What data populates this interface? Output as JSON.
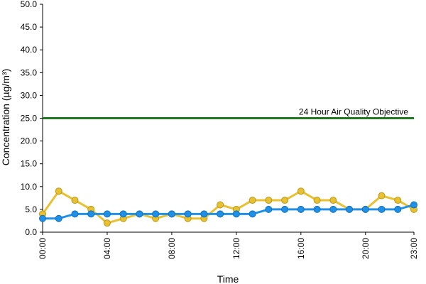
{
  "chart_data": {
    "type": "line",
    "title": "",
    "xlabel": "Time",
    "ylabel": "Concentration (µg/m³)",
    "ylim": [
      0,
      50
    ],
    "y_ticks": [
      "0.0",
      "5.0",
      "10.0",
      "15.0",
      "20.0",
      "25.0",
      "30.0",
      "35.0",
      "40.0",
      "45.0",
      "50.0"
    ],
    "x": [
      "00:00",
      "01:00",
      "02:00",
      "03:00",
      "04:00",
      "05:00",
      "06:00",
      "07:00",
      "08:00",
      "09:00",
      "10:00",
      "11:00",
      "12:00",
      "13:00",
      "14:00",
      "15:00",
      "16:00",
      "17:00",
      "18:00",
      "19:00",
      "20:00",
      "21:00",
      "22:00",
      "23:00"
    ],
    "x_tick_labels": [
      "00:00",
      "04:00",
      "08:00",
      "12:00",
      "16:00",
      "20:00",
      "23:00"
    ],
    "grid": false,
    "legend": "none",
    "objective": {
      "label": "24 Hour Air Quality Objective",
      "value": 25,
      "color": "#1f7a1f"
    },
    "series": [
      {
        "color": "#e8c030",
        "values": [
          4,
          9,
          7,
          5,
          2,
          3,
          4,
          3,
          4,
          3,
          3,
          6,
          5,
          7,
          7,
          7,
          9,
          7,
          7,
          5,
          5,
          8,
          7,
          5
        ]
      },
      {
        "color": "#1e90e8",
        "values": [
          3,
          3,
          4,
          4,
          4,
          4,
          4,
          4,
          4,
          4,
          4,
          4,
          4,
          4,
          5,
          5,
          5,
          5,
          5,
          5,
          5,
          5,
          5,
          6
        ]
      }
    ]
  }
}
